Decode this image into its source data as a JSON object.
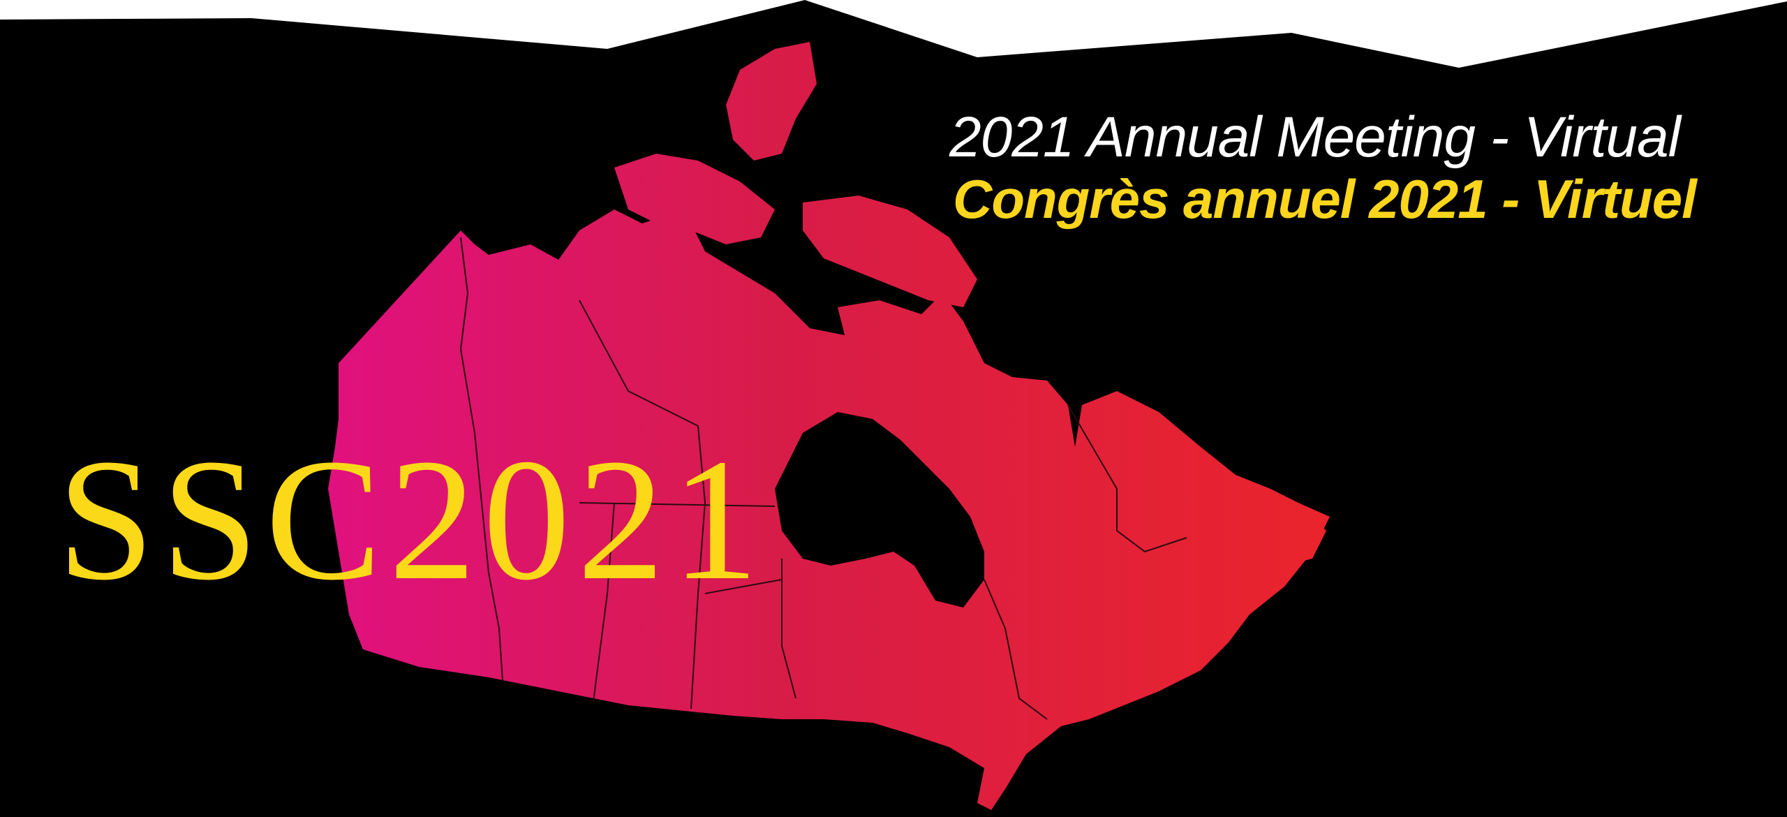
{
  "banner": {
    "headline_en": "2021 Annual Meeting - Virtual",
    "headline_fr": "Congrès annuel 2021 - Virtuel",
    "logo_text": "SSC2021"
  },
  "colors": {
    "background": "#000000",
    "top_edge": "#ffffff",
    "headline_en": "#ffffff",
    "headline_fr": "#fcd61c",
    "logo": "#fcd918",
    "map_gradient_west": "#e0117e",
    "map_gradient_mid": "#d81c48",
    "map_gradient_east": "#ea242c",
    "province_border": "#2a0a10"
  },
  "map": {
    "subject": "canada-map-icon"
  }
}
